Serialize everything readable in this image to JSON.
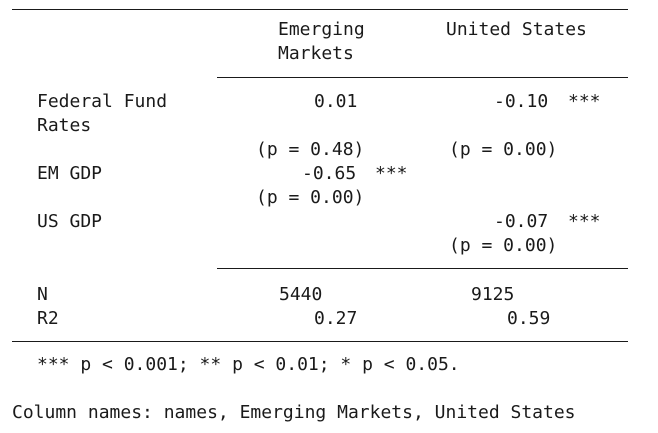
{
  "table": {
    "headers": {
      "em": [
        "Emerging",
        "Markets"
      ],
      "us": "United States"
    },
    "rows": [
      {
        "label": [
          "Federal Fund",
          "Rates"
        ],
        "em_coef": "0.01",
        "em_stars": "",
        "em_p": "(p = 0.48)",
        "us_coef": "-0.10",
        "us_stars": "***",
        "us_p": "(p = 0.00)"
      },
      {
        "label": [
          "EM GDP"
        ],
        "em_coef": "-0.65",
        "em_stars": "***",
        "em_p": "(p = 0.00)",
        "us_coef": "",
        "us_stars": "",
        "us_p": ""
      },
      {
        "label": [
          "US GDP"
        ],
        "em_coef": "",
        "em_stars": "",
        "em_p": "",
        "us_coef": "-0.07",
        "us_stars": "***",
        "us_p": "(p = 0.00)"
      }
    ],
    "stats": [
      {
        "label": "N",
        "em": "5440",
        "us": "9125"
      },
      {
        "label": "R2",
        "em": "0.27",
        "us": "0.59"
      }
    ],
    "footnote": "*** p < 0.001; ** p < 0.01; * p < 0.05."
  },
  "caption": "Column names: names, Emerging Markets, United States"
}
